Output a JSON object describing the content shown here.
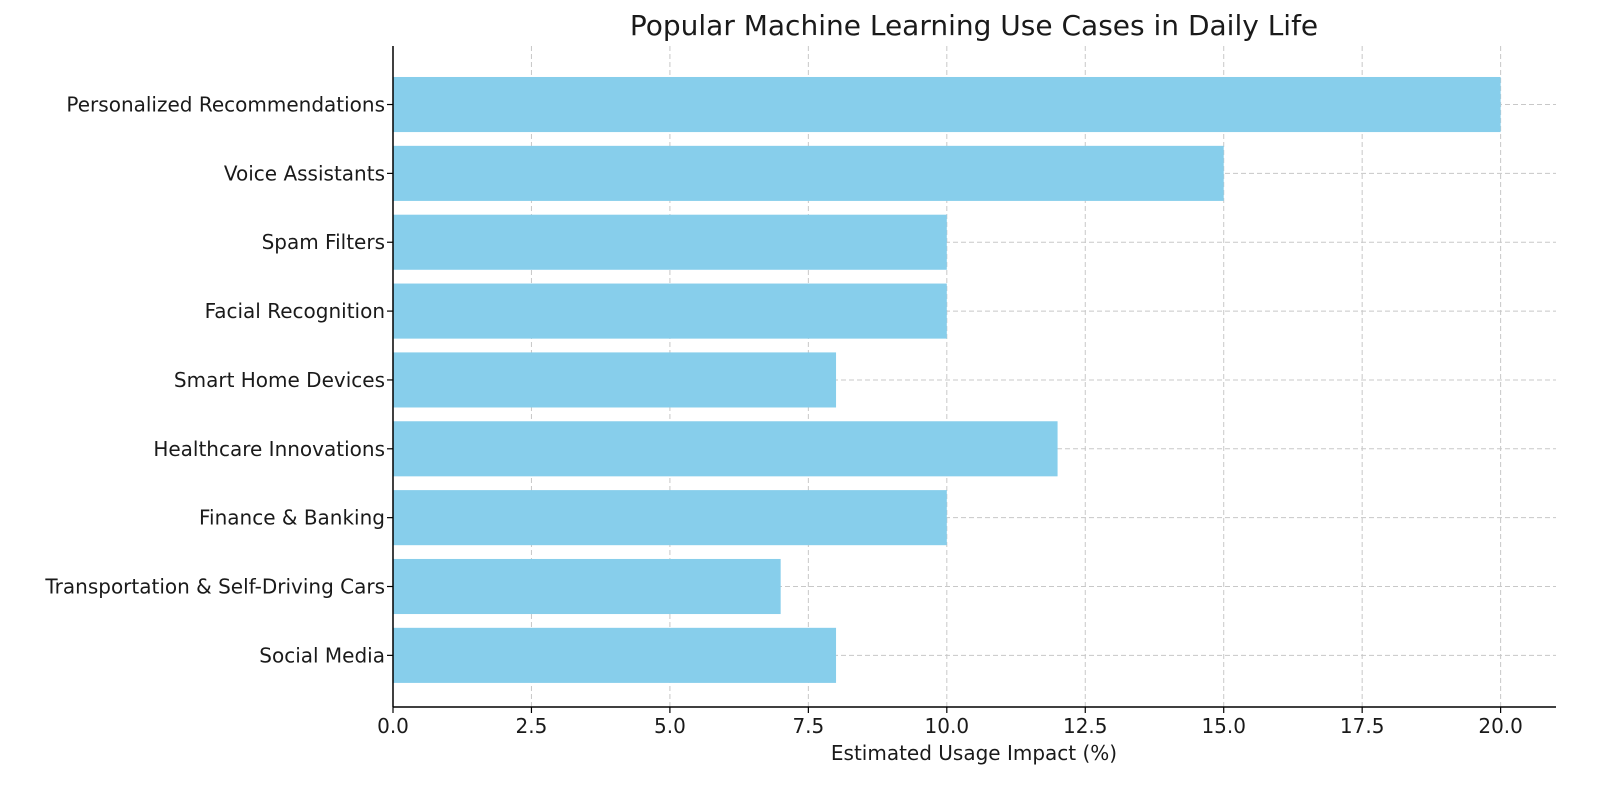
{
  "chart_data": {
    "type": "bar",
    "orientation": "horizontal",
    "title": "Popular Machine Learning Use Cases in Daily Life",
    "xlabel": "Estimated Usage Impact (%)",
    "ylabel": "",
    "categories": [
      "Personalized Recommendations",
      "Voice Assistants",
      "Spam Filters",
      "Facial Recognition",
      "Smart Home Devices",
      "Healthcare Innovations",
      "Finance & Banking",
      "Transportation & Self-Driving Cars",
      "Social Media"
    ],
    "values": [
      20,
      15,
      10,
      10,
      8,
      12,
      10,
      7,
      8
    ],
    "xlim": [
      0,
      21
    ],
    "xticks": [
      0.0,
      2.5,
      5.0,
      7.5,
      10.0,
      12.5,
      15.0,
      17.5,
      20.0
    ],
    "xtick_labels": [
      "0.0",
      "2.5",
      "5.0",
      "7.5",
      "10.0",
      "12.5",
      "15.0",
      "17.5",
      "20.0"
    ],
    "grid": true,
    "bar_color": "#87ceeb"
  }
}
